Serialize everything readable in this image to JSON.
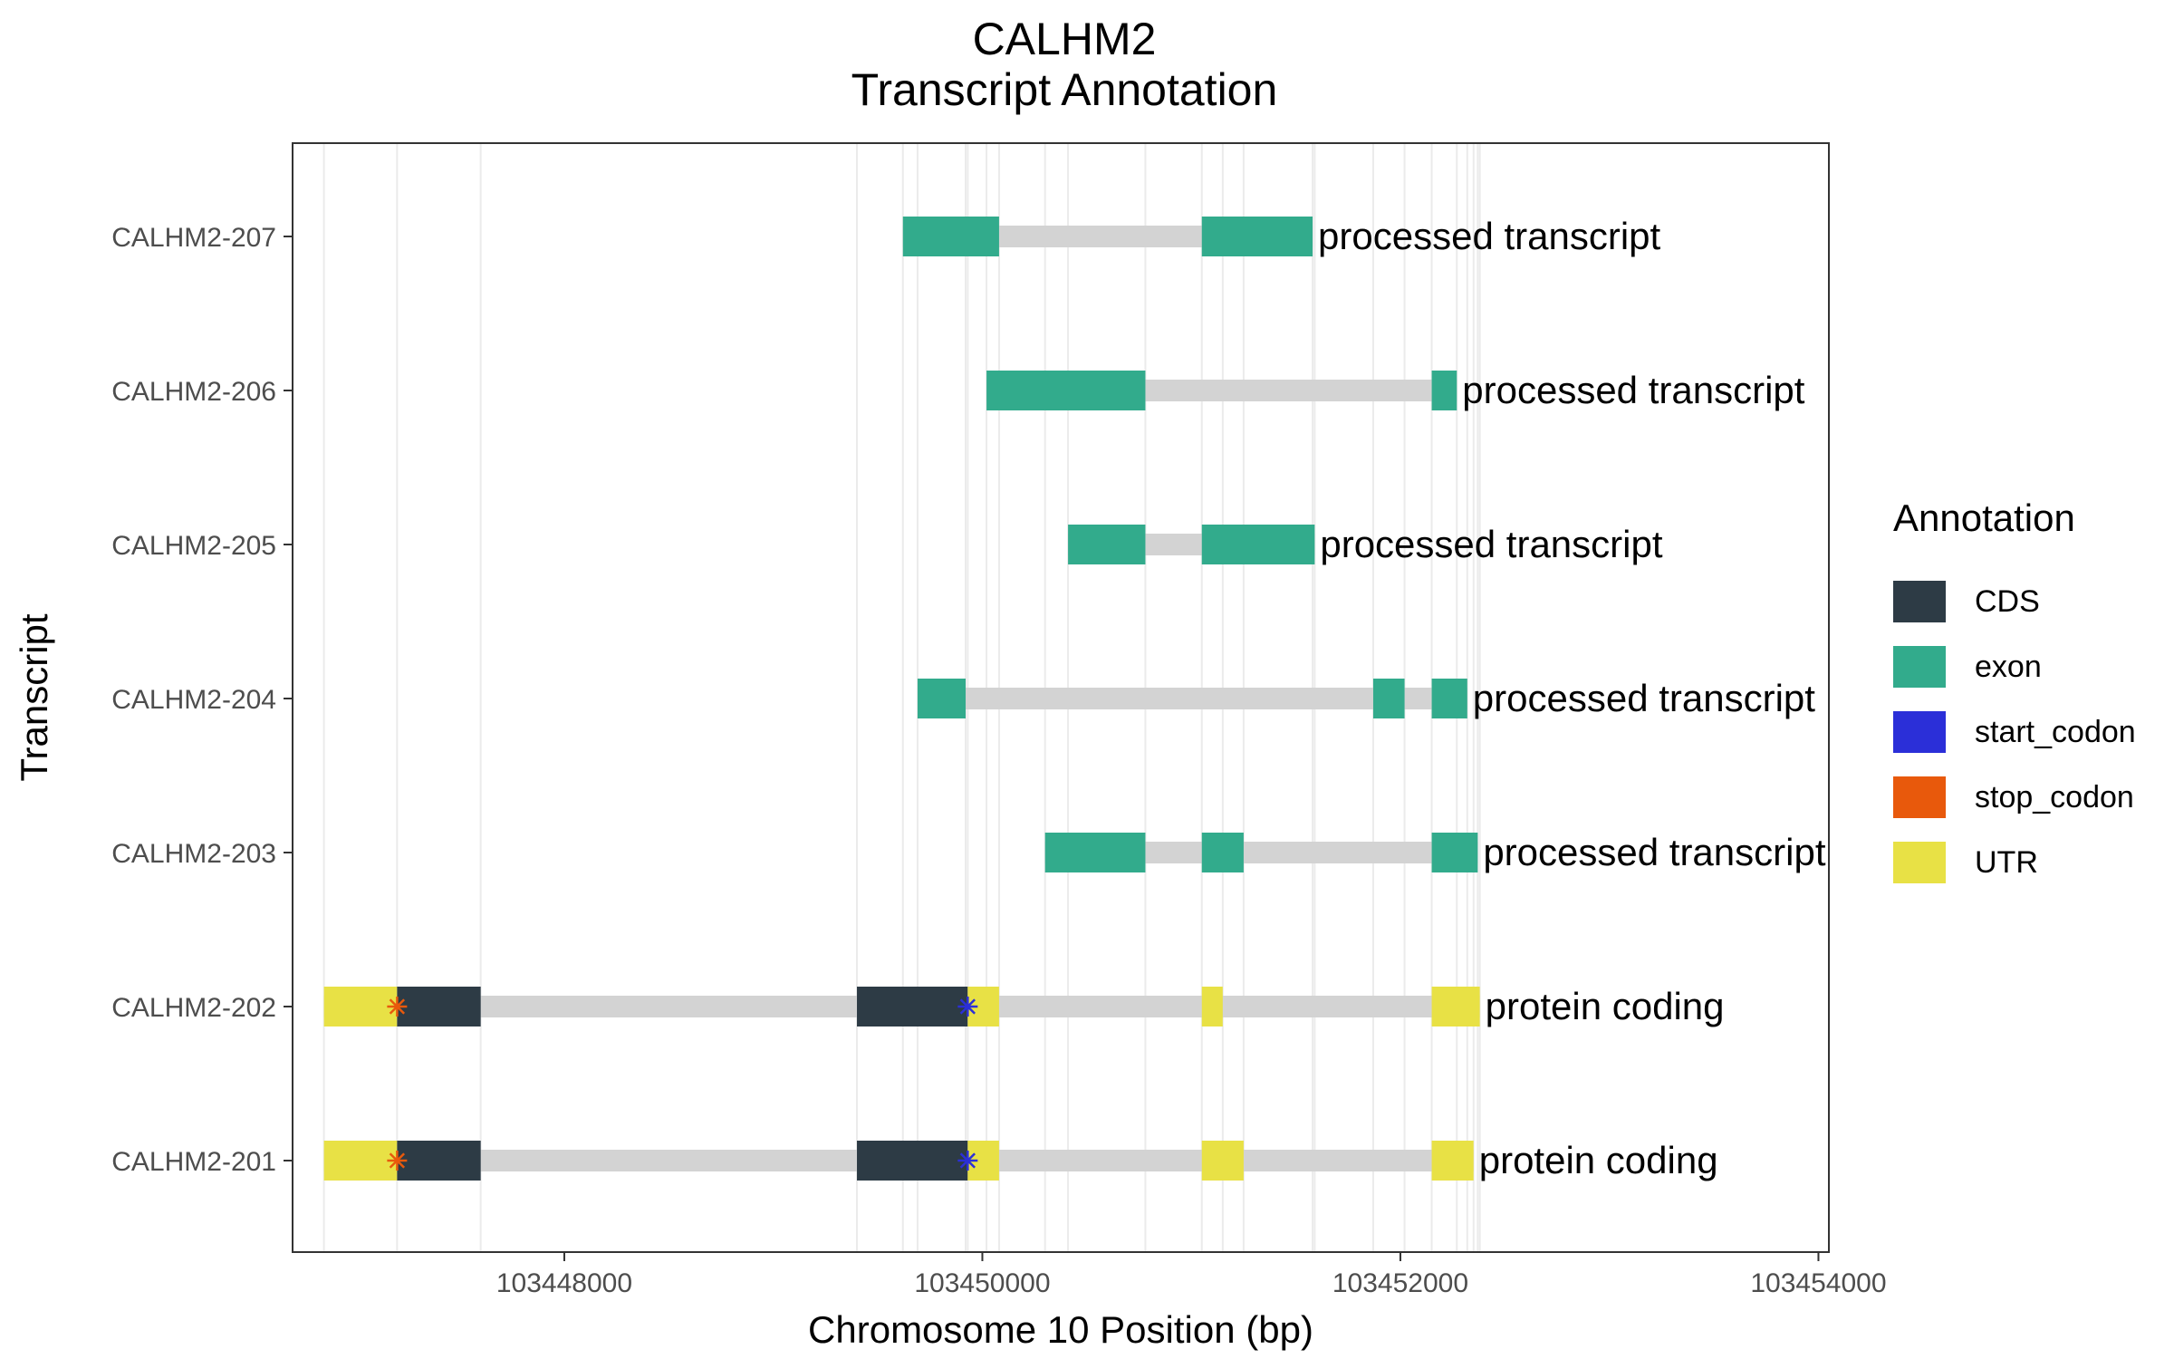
{
  "title_line1": "CALHM2",
  "title_line2": "Transcript Annotation",
  "legend": {
    "title": "Annotation",
    "items": [
      {
        "label": "CDS",
        "color": "#2d3b45"
      },
      {
        "label": "exon",
        "color": "#32ab8c"
      },
      {
        "label": "start_codon",
        "color": "#2b2fd8"
      },
      {
        "label": "stop_codon",
        "color": "#e8590c"
      },
      {
        "label": "UTR",
        "color": "#e8e145"
      }
    ]
  },
  "chart_data": {
    "type": "gene-track",
    "title": "CALHM2\nTranscript Annotation",
    "xlabel": "Chromosome 10 Position (bp)",
    "ylabel": "Transcript",
    "xlim": [
      103446700,
      103454050
    ],
    "xticks": [
      103448000,
      103450000,
      103452000,
      103454000
    ],
    "intron_color": "#d3d3d3",
    "colors": {
      "CDS": "#2d3b45",
      "exon": "#32ab8c",
      "start_codon": "#2b2fd8",
      "stop_codon": "#e8590c",
      "UTR": "#e8e145"
    },
    "transcripts": [
      {
        "name": "CALHM2-207",
        "label": "processed transcript",
        "start": 103449620,
        "end": 103451580,
        "features": [
          {
            "type": "exon",
            "start": 103449620,
            "end": 103450080
          },
          {
            "type": "exon",
            "start": 103451050,
            "end": 103451580
          }
        ]
      },
      {
        "name": "CALHM2-206",
        "label": "processed transcript",
        "start": 103450020,
        "end": 103452270,
        "features": [
          {
            "type": "exon",
            "start": 103450020,
            "end": 103450780
          },
          {
            "type": "exon",
            "start": 103452150,
            "end": 103452270
          }
        ]
      },
      {
        "name": "CALHM2-205",
        "label": "processed transcript",
        "start": 103450410,
        "end": 103451590,
        "features": [
          {
            "type": "exon",
            "start": 103450410,
            "end": 103450780
          },
          {
            "type": "exon",
            "start": 103451050,
            "end": 103451590
          }
        ]
      },
      {
        "name": "CALHM2-204",
        "label": "processed transcript",
        "start": 103449690,
        "end": 103452320,
        "features": [
          {
            "type": "exon",
            "start": 103449690,
            "end": 103449920
          },
          {
            "type": "exon",
            "start": 103451870,
            "end": 103452020
          },
          {
            "type": "exon",
            "start": 103452150,
            "end": 103452320
          }
        ]
      },
      {
        "name": "CALHM2-203",
        "label": "processed transcript",
        "start": 103450300,
        "end": 103452370,
        "features": [
          {
            "type": "exon",
            "start": 103450300,
            "end": 103450780
          },
          {
            "type": "exon",
            "start": 103451050,
            "end": 103451250
          },
          {
            "type": "exon",
            "start": 103452150,
            "end": 103452370
          }
        ]
      },
      {
        "name": "CALHM2-202",
        "label": "protein coding",
        "start": 103446850,
        "end": 103452380,
        "features": [
          {
            "type": "UTR",
            "start": 103446850,
            "end": 103447200
          },
          {
            "type": "CDS",
            "start": 103447200,
            "end": 103447600
          },
          {
            "type": "CDS",
            "start": 103449400,
            "end": 103449930
          },
          {
            "type": "UTR",
            "start": 103449930,
            "end": 103450080
          },
          {
            "type": "UTR",
            "start": 103451050,
            "end": 103451150
          },
          {
            "type": "UTR",
            "start": 103452150,
            "end": 103452380
          },
          {
            "type": "stop_codon",
            "start": 103447200,
            "end": 103447200
          },
          {
            "type": "start_codon",
            "start": 103449930,
            "end": 103449930
          }
        ]
      },
      {
        "name": "CALHM2-201",
        "label": "protein coding",
        "start": 103446850,
        "end": 103452350,
        "features": [
          {
            "type": "UTR",
            "start": 103446850,
            "end": 103447200
          },
          {
            "type": "CDS",
            "start": 103447200,
            "end": 103447600
          },
          {
            "type": "CDS",
            "start": 103449400,
            "end": 103449930
          },
          {
            "type": "UTR",
            "start": 103449930,
            "end": 103450080
          },
          {
            "type": "UTR",
            "start": 103451050,
            "end": 103451250
          },
          {
            "type": "UTR",
            "start": 103452150,
            "end": 103452350
          },
          {
            "type": "stop_codon",
            "start": 103447200,
            "end": 103447200
          },
          {
            "type": "start_codon",
            "start": 103449930,
            "end": 103449930
          }
        ]
      }
    ]
  }
}
